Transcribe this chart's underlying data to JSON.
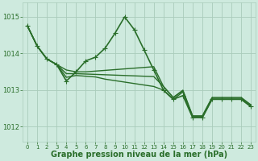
{
  "background_color": "#ceeade",
  "grid_color": "#aaccbb",
  "line_color": "#2a6e2a",
  "marker_color": "#2a6e2a",
  "xlabel": "Graphe pression niveau de la mer (hPa)",
  "ylim": [
    1011.6,
    1015.4
  ],
  "xlim": [
    -0.5,
    23.5
  ],
  "yticks": [
    1012,
    1013,
    1014,
    1015
  ],
  "xticks": [
    0,
    1,
    2,
    3,
    4,
    5,
    6,
    7,
    8,
    9,
    10,
    11,
    12,
    13,
    14,
    15,
    16,
    17,
    18,
    19,
    20,
    21,
    22,
    23
  ],
  "series": [
    {
      "x": [
        0,
        1,
        2,
        3,
        4,
        5,
        6,
        7,
        8,
        9,
        10,
        11,
        12,
        13,
        14,
        15,
        16,
        17,
        18,
        19,
        20,
        21,
        22,
        23
      ],
      "y": [
        1014.75,
        1014.2,
        1013.85,
        1013.7,
        1013.25,
        1013.5,
        1013.8,
        1013.9,
        1014.15,
        1014.55,
        1015.0,
        1014.65,
        1014.1,
        1013.55,
        1013.0,
        1012.75,
        1012.85,
        1012.25,
        1012.25,
        1012.75,
        1012.75,
        1012.75,
        1012.75,
        1012.55
      ],
      "lw": 1.2,
      "ms": 3.0,
      "markers": true
    },
    {
      "x": [
        0,
        1,
        2,
        3,
        4,
        5,
        6,
        7,
        8,
        9,
        10,
        11,
        12,
        13,
        14,
        15,
        16,
        17,
        18,
        19,
        20,
        21,
        22,
        23
      ],
      "y": [
        1014.75,
        1014.2,
        1013.85,
        1013.7,
        1013.55,
        1013.5,
        1013.5,
        1013.52,
        1013.54,
        1013.56,
        1013.58,
        1013.6,
        1013.62,
        1013.64,
        1013.1,
        1012.8,
        1013.0,
        1012.3,
        1012.3,
        1012.8,
        1012.8,
        1012.8,
        1012.8,
        1012.6
      ],
      "lw": 1.0,
      "ms": 2.0,
      "markers": false
    },
    {
      "x": [
        0,
        1,
        2,
        3,
        4,
        5,
        6,
        7,
        8,
        9,
        10,
        11,
        12,
        13,
        14,
        15,
        16,
        17,
        18,
        19,
        20,
        21,
        22,
        23
      ],
      "y": [
        1014.75,
        1014.2,
        1013.85,
        1013.7,
        1013.45,
        1013.45,
        1013.44,
        1013.43,
        1013.42,
        1013.41,
        1013.4,
        1013.39,
        1013.38,
        1013.37,
        1013.1,
        1012.8,
        1012.98,
        1012.28,
        1012.28,
        1012.78,
        1012.78,
        1012.78,
        1012.78,
        1012.58
      ],
      "lw": 1.0,
      "ms": 2.0,
      "markers": false
    },
    {
      "x": [
        0,
        1,
        2,
        3,
        4,
        5,
        6,
        7,
        8,
        9,
        10,
        11,
        12,
        13,
        14,
        15,
        16,
        17,
        18,
        19,
        20,
        21,
        22,
        23
      ],
      "y": [
        1014.75,
        1014.2,
        1013.85,
        1013.7,
        1013.35,
        1013.4,
        1013.38,
        1013.36,
        1013.3,
        1013.26,
        1013.22,
        1013.18,
        1013.14,
        1013.1,
        1013.0,
        1012.75,
        1012.95,
        1012.25,
        1012.25,
        1012.75,
        1012.75,
        1012.75,
        1012.75,
        1012.55
      ],
      "lw": 1.0,
      "ms": 2.0,
      "markers": false
    }
  ],
  "font_color": "#2a6e2a",
  "tick_fontsize": 6,
  "xlabel_fontsize": 7
}
